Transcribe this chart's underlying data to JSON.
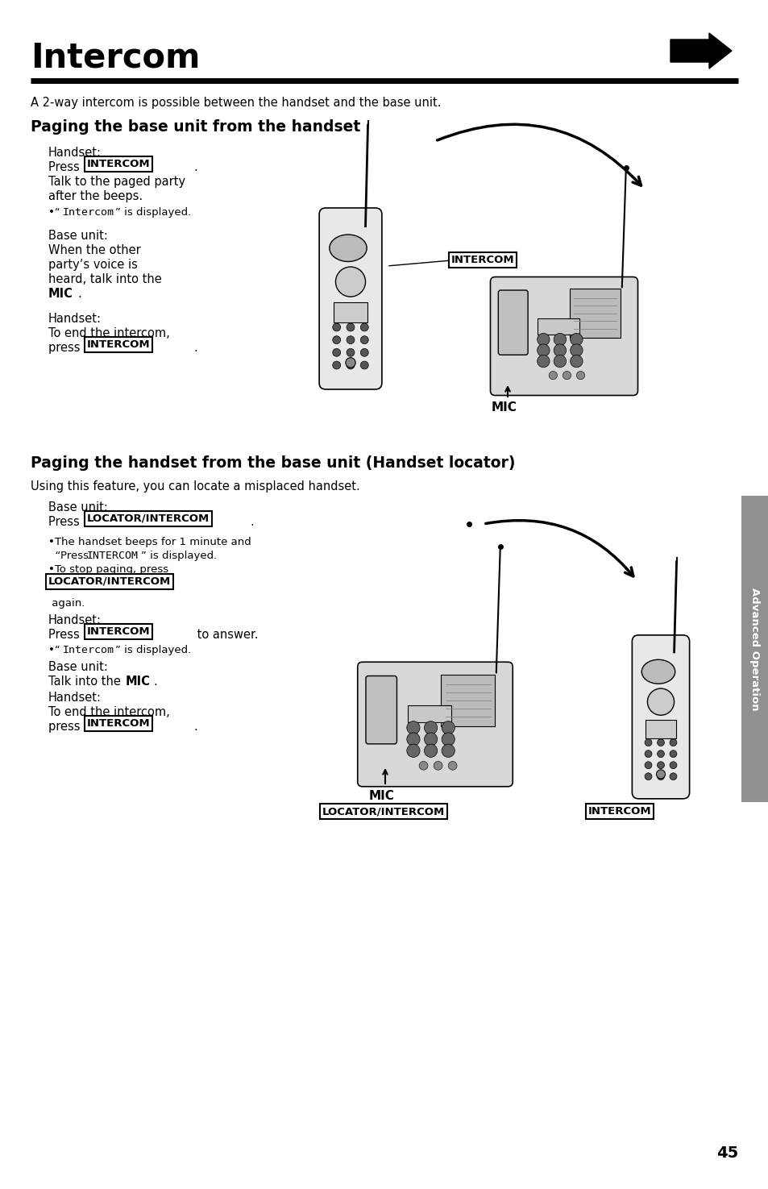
{
  "title": "Intercom",
  "bg_color": "#ffffff",
  "text_color": "#000000",
  "page_number": "45",
  "sidebar_color": "#909090",
  "sidebar_text": "Advanced Operation",
  "section1_heading": "Paging the base unit from the handset",
  "section2_heading": "Paging the handset from the base unit (Handset locator)",
  "section2_intro": "Using this feature, you can locate a misplaced handset.",
  "intro_text": "A 2-way intercom is possible between the handset and the base unit."
}
